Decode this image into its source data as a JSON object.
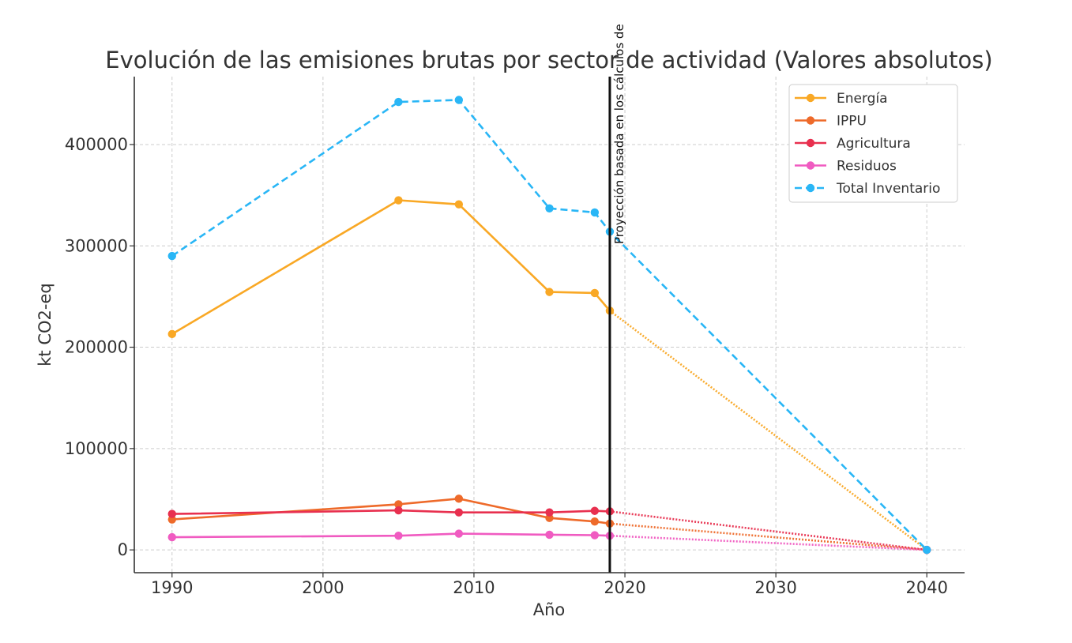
{
  "chart_data": {
    "type": "line",
    "title": "Evolución de las emisiones brutas por sector de actividad (Valores absolutos)",
    "xlabel": "Año",
    "ylabel": "kt CO2-eq",
    "xlim": [
      1987.5,
      2042.5
    ],
    "ylim": [
      -22500,
      467000
    ],
    "xticks": [
      1990,
      2000,
      2010,
      2020,
      2030,
      2040
    ],
    "yticks": [
      0,
      100000,
      200000,
      300000,
      400000
    ],
    "grid": true,
    "legend_position": "top-right",
    "vline": {
      "x": 2019,
      "label": "Proyección basada en los cálculos de"
    },
    "series": [
      {
        "name": "Energía",
        "color": "#f9a825",
        "dash": "solid",
        "x": [
          1990,
          2005,
          2009,
          2015,
          2018,
          2019
        ],
        "values": [
          213000,
          345000,
          341000,
          254500,
          253500,
          236000
        ],
        "projection": {
          "x": [
            2019,
            2040
          ],
          "values": [
            236000,
            0
          ]
        }
      },
      {
        "name": "IPPU",
        "color": "#ee6a2a",
        "dash": "solid",
        "x": [
          1990,
          2005,
          2009,
          2015,
          2018,
          2019
        ],
        "values": [
          30000,
          45000,
          50500,
          31500,
          28000,
          26000
        ],
        "projection": {
          "x": [
            2019,
            2040
          ],
          "values": [
            26000,
            0
          ]
        }
      },
      {
        "name": "Agricultura",
        "color": "#e8304f",
        "dash": "solid",
        "x": [
          1990,
          2005,
          2009,
          2015,
          2018,
          2019
        ],
        "values": [
          35500,
          39000,
          37000,
          37000,
          38500,
          38000
        ],
        "projection": {
          "x": [
            2019,
            2040
          ],
          "values": [
            38000,
            0
          ]
        }
      },
      {
        "name": "Residuos",
        "color": "#f05bc1",
        "dash": "solid",
        "x": [
          1990,
          2005,
          2009,
          2015,
          2018,
          2019
        ],
        "values": [
          12500,
          14000,
          16000,
          15000,
          14500,
          14000
        ],
        "projection": {
          "x": [
            2019,
            2040
          ],
          "values": [
            14000,
            0
          ]
        }
      },
      {
        "name": "Total Inventario",
        "color": "#29b6f6",
        "dash": "dashed",
        "x": [
          1990,
          2005,
          2009,
          2015,
          2018,
          2019,
          2040
        ],
        "values": [
          290000,
          442000,
          444000,
          337000,
          333000,
          314000,
          0
        ]
      }
    ]
  }
}
